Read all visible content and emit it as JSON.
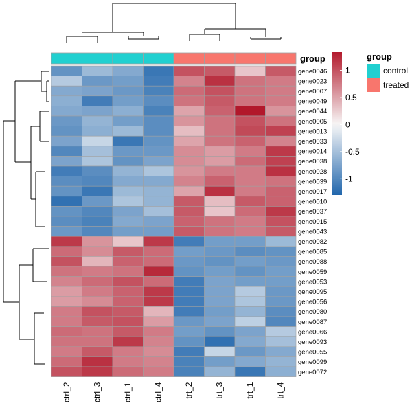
{
  "chart_data": {
    "type": "heatmap",
    "title": "",
    "columns": [
      "ctrl_2",
      "ctrl_3",
      "ctrl_1",
      "ctrl_4",
      "trt_2",
      "trt_3",
      "trt_1",
      "trt_4"
    ],
    "rows": [
      "gene0046",
      "gene0023",
      "gene0007",
      "gene0049",
      "gene0044",
      "gene0005",
      "gene0013",
      "gene0033",
      "gene0014",
      "gene0038",
      "gene0028",
      "gene0039",
      "gene0017",
      "gene0010",
      "gene0037",
      "gene0015",
      "gene0043",
      "gene0082",
      "gene0085",
      "gene0088",
      "gene0059",
      "gene0053",
      "gene0095",
      "gene0056",
      "gene0080",
      "gene0087",
      "gene0066",
      "gene0093",
      "gene0055",
      "gene0099",
      "gene0072"
    ],
    "values": [
      [
        -0.9,
        -0.55,
        -0.7,
        -1.15,
        1.0,
        0.95,
        0.3,
        0.95
      ],
      [
        -0.4,
        -0.85,
        -0.8,
        -1.1,
        0.7,
        1.2,
        0.8,
        0.75
      ],
      [
        -0.7,
        -0.75,
        -0.85,
        -1.05,
        0.85,
        1.0,
        0.8,
        0.75
      ],
      [
        -0.65,
        -1.1,
        -0.8,
        -0.95,
        0.8,
        0.95,
        0.8,
        0.75
      ],
      [
        -0.7,
        -0.75,
        -0.65,
        -1.05,
        0.5,
        0.9,
        1.35,
        0.6
      ],
      [
        -0.85,
        -0.6,
        -0.8,
        -0.95,
        0.6,
        0.8,
        1.0,
        0.8
      ],
      [
        -0.9,
        -0.65,
        -0.55,
        -0.95,
        0.35,
        0.8,
        1.05,
        1.1
      ],
      [
        -0.75,
        -0.3,
        -1.15,
        -0.9,
        0.5,
        0.8,
        0.9,
        0.7
      ],
      [
        -1.0,
        -0.5,
        -0.85,
        -0.85,
        0.65,
        0.55,
        0.75,
        1.15
      ],
      [
        -0.75,
        -0.45,
        -0.9,
        -0.75,
        0.65,
        0.55,
        0.85,
        1.1
      ],
      [
        -1.1,
        -0.95,
        -0.6,
        -0.45,
        0.6,
        0.75,
        0.75,
        1.2
      ],
      [
        -0.95,
        -1.0,
        -0.7,
        -0.7,
        0.7,
        0.9,
        0.75,
        0.8
      ],
      [
        -0.9,
        -1.15,
        -0.55,
        -0.6,
        0.5,
        1.2,
        0.75,
        0.9
      ],
      [
        -1.2,
        -0.85,
        -0.45,
        -0.6,
        0.95,
        0.35,
        0.95,
        0.9
      ],
      [
        -0.9,
        -1.0,
        -0.75,
        -0.5,
        0.95,
        0.3,
        0.85,
        1.15
      ],
      [
        -0.95,
        -1.05,
        -0.7,
        -0.75,
        0.9,
        0.8,
        0.75,
        1.0
      ],
      [
        -0.85,
        -1.0,
        -0.8,
        -0.8,
        0.95,
        0.8,
        0.75,
        0.95
      ],
      [
        1.15,
        0.6,
        0.3,
        1.15,
        -1.1,
        -0.8,
        -0.8,
        -0.55
      ],
      [
        0.85,
        0.65,
        0.95,
        0.85,
        -0.8,
        -0.85,
        -0.95,
        -0.9
      ],
      [
        1.0,
        0.4,
        0.9,
        0.85,
        -0.85,
        -0.9,
        -0.8,
        -0.85
      ],
      [
        0.8,
        0.75,
        0.8,
        1.25,
        -0.9,
        -0.8,
        -0.9,
        -0.8
      ],
      [
        0.7,
        0.85,
        1.0,
        0.85,
        -1.1,
        -0.75,
        -0.8,
        -0.8
      ],
      [
        0.55,
        0.75,
        0.9,
        1.15,
        -1.1,
        -0.75,
        -0.4,
        -0.85
      ],
      [
        0.55,
        0.65,
        0.9,
        1.15,
        -1.1,
        -0.75,
        -0.45,
        -0.85
      ],
      [
        0.75,
        1.0,
        0.95,
        0.4,
        -1.1,
        -0.8,
        -0.6,
        -0.95
      ],
      [
        0.75,
        0.95,
        1.0,
        0.55,
        -0.85,
        -0.75,
        -0.35,
        -1.0
      ],
      [
        0.85,
        0.8,
        0.95,
        0.75,
        -0.8,
        -0.9,
        -0.75,
        -0.4
      ],
      [
        0.8,
        0.8,
        1.15,
        0.7,
        -0.9,
        -1.2,
        -0.7,
        -0.5
      ],
      [
        0.75,
        0.95,
        0.75,
        0.65,
        -1.1,
        -0.3,
        -0.85,
        -0.7
      ],
      [
        0.85,
        1.2,
        0.75,
        0.7,
        -1.05,
        -0.8,
        -0.7,
        -0.6
      ],
      [
        1.0,
        1.15,
        0.85,
        0.75,
        -1.05,
        -0.6,
        -1.15,
        -0.65
      ]
    ],
    "color_scale": {
      "min": -1.3,
      "max": 1.35,
      "low_color": "#2166ac",
      "mid_color": "#f7f7f7",
      "high_color": "#b2182b",
      "ticks": [
        -1,
        -0.5,
        0,
        0.5,
        1
      ],
      "tick_labels": [
        "-1",
        "-0.5",
        "0",
        "0.5",
        "1"
      ]
    },
    "annotation": {
      "title": "group",
      "column_groups": [
        "control",
        "control",
        "control",
        "control",
        "treated",
        "treated",
        "treated",
        "treated"
      ],
      "levels": [
        {
          "label": "control",
          "color": "#21d0d0"
        },
        {
          "label": "treated",
          "color": "#f8766d"
        }
      ]
    },
    "row_clusters": 2,
    "col_clusters": 2,
    "legend_position": "right",
    "grid": true,
    "cell_border_color": "#a0a0a0"
  }
}
